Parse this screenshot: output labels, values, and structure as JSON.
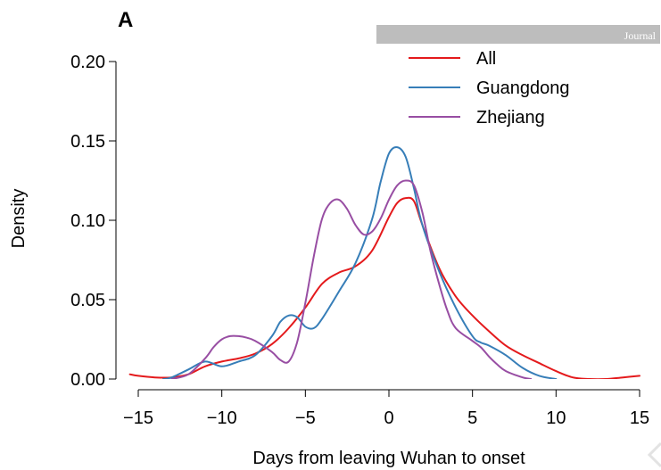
{
  "panel_label": "A",
  "watermark": {
    "text": "Journal",
    "bar_color": "#bdbdbd"
  },
  "chart_data": {
    "type": "line",
    "title": "",
    "xlabel": "Days from leaving Wuhan to onset",
    "ylabel": "Density",
    "xlim": [
      -15,
      15
    ],
    "ylim": [
      0,
      0.2
    ],
    "xticks": [
      -15,
      -10,
      -5,
      0,
      5,
      10,
      15
    ],
    "xtick_labels": [
      "−15",
      "−10",
      "−5",
      "0",
      "5",
      "10",
      "15"
    ],
    "yticks": [
      0,
      0.05,
      0.1,
      0.15,
      0.2
    ],
    "ytick_labels": [
      "0.00",
      "0.05",
      "0.10",
      "0.15",
      "0.20"
    ],
    "grid": false,
    "legend_position": "top-right",
    "series": [
      {
        "name": "All",
        "color": "#e41a1c",
        "x": [
          -15.5,
          -15,
          -14,
          -13,
          -12,
          -11,
          -10,
          -9,
          -8,
          -7,
          -6,
          -5,
          -4,
          -3,
          -2,
          -1,
          0,
          0.5,
          1,
          1.5,
          2,
          3,
          4,
          5,
          6,
          7,
          8,
          9,
          10,
          11,
          12,
          13,
          14,
          15
        ],
        "y": [
          0.003,
          0.002,
          0.001,
          0.001,
          0.003,
          0.008,
          0.011,
          0.013,
          0.016,
          0.022,
          0.032,
          0.045,
          0.06,
          0.067,
          0.071,
          0.081,
          0.102,
          0.111,
          0.114,
          0.112,
          0.097,
          0.07,
          0.052,
          0.04,
          0.03,
          0.021,
          0.015,
          0.01,
          0.005,
          0.001,
          0.0,
          0.0,
          0.001,
          0.002
        ]
      },
      {
        "name": "Guangdong",
        "color": "#377eb8",
        "x": [
          -13.5,
          -13,
          -12,
          -11,
          -10,
          -9,
          -8,
          -7,
          -6.5,
          -6,
          -5.5,
          -5,
          -4.5,
          -4,
          -3,
          -2,
          -1,
          -0.5,
          0,
          0.5,
          1,
          1.5,
          2,
          3,
          4,
          5,
          5.5,
          6,
          7,
          8,
          9,
          10
        ],
        "y": [
          0.0,
          0.001,
          0.006,
          0.011,
          0.008,
          0.011,
          0.015,
          0.027,
          0.036,
          0.04,
          0.039,
          0.033,
          0.032,
          0.038,
          0.055,
          0.073,
          0.101,
          0.124,
          0.142,
          0.146,
          0.14,
          0.12,
          0.097,
          0.068,
          0.045,
          0.027,
          0.023,
          0.021,
          0.015,
          0.007,
          0.002,
          0.0
        ]
      },
      {
        "name": "Zhejiang",
        "color": "#984ea3",
        "x": [
          -13,
          -12,
          -11,
          -10.5,
          -10,
          -9.5,
          -9,
          -8.5,
          -8,
          -7,
          -6.5,
          -6,
          -5.5,
          -5,
          -4.5,
          -4,
          -3.5,
          -3,
          -2.5,
          -2,
          -1.5,
          -1,
          -0.5,
          0,
          0.5,
          1,
          1.5,
          2,
          2.5,
          3,
          3.5,
          4,
          5,
          5.5,
          6,
          6.5,
          7,
          8,
          8.5
        ],
        "y": [
          0.0,
          0.003,
          0.013,
          0.02,
          0.025,
          0.027,
          0.027,
          0.026,
          0.024,
          0.017,
          0.012,
          0.011,
          0.023,
          0.048,
          0.077,
          0.101,
          0.111,
          0.113,
          0.107,
          0.097,
          0.091,
          0.093,
          0.101,
          0.113,
          0.122,
          0.125,
          0.122,
          0.105,
          0.08,
          0.06,
          0.043,
          0.032,
          0.024,
          0.02,
          0.014,
          0.009,
          0.005,
          0.001,
          0.0
        ]
      }
    ]
  }
}
